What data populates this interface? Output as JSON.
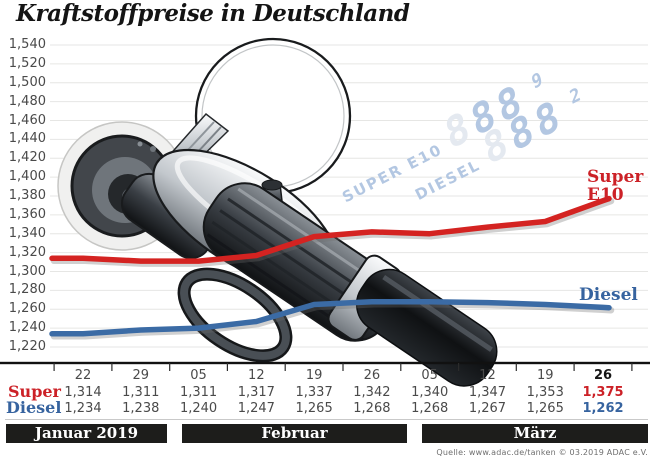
{
  "title": "Kraftstoffpreise in Deutschland",
  "source": "Quelle: www.adac.de/tanken   © 03.2019  ADAC e.V.",
  "legend": {
    "super_line1": "Super",
    "super_line2": "E10",
    "diesel": "Diesel"
  },
  "row_labels": {
    "super": "Super",
    "diesel": "Diesel"
  },
  "months": [
    "Januar 2019",
    "Februar",
    "März"
  ],
  "watermark": {
    "row1_label": "SUPER E10",
    "row1_digits": [
      "8",
      "8",
      "8"
    ],
    "row1_sup": "9",
    "row2_label": "DIESEL",
    "row2_digits": [
      "8",
      "8",
      "8"
    ],
    "row2_sup": "2"
  },
  "colors": {
    "super": "#cc2127",
    "diesel": "#36639f",
    "super_line": "#d42321",
    "diesel_line": "#3b6ba5",
    "month_bar": "#1d1d1b",
    "grid": "#e6e6e4",
    "axis_text": "#4a4a4a",
    "baseline": "#111111",
    "watermark_lit": "#b3c7e2",
    "watermark_dim": "#e4e9f0",
    "source_text": "#6f6f6f"
  },
  "chart_data": {
    "type": "line",
    "title": "Kraftstoffpreise in Deutschland",
    "x_tick_labels": [
      "22",
      "29",
      "05",
      "12",
      "19",
      "26",
      "05",
      "12",
      "19",
      "26"
    ],
    "month_groups": [
      {
        "label": "Januar 2019",
        "tick_indices": [
          0,
          1
        ]
      },
      {
        "label": "Februar",
        "tick_indices": [
          2,
          3,
          4,
          5
        ]
      },
      {
        "label": "März",
        "tick_indices": [
          6,
          7,
          8,
          9
        ]
      }
    ],
    "y_tick_labels": [
      "1,540",
      "1,520",
      "1,500",
      "1,480",
      "1,460",
      "1,440",
      "1,420",
      "1,400",
      "1,380",
      "1,360",
      "1,340",
      "1,320",
      "1,300",
      "1,280",
      "1,260",
      "1,240",
      "1,220"
    ],
    "ylim": [
      1.22,
      1.54
    ],
    "grid": true,
    "legend_position": "right-of-line-ends",
    "series": [
      {
        "name": "Super E10",
        "color_key": "super_line",
        "label_color_key": "super",
        "values": [
          1.314,
          1.311,
          1.311,
          1.317,
          1.337,
          1.342,
          1.34,
          1.347,
          1.353,
          1.375
        ]
      },
      {
        "name": "Diesel",
        "color_key": "diesel_line",
        "label_color_key": "diesel",
        "values": [
          1.234,
          1.238,
          1.24,
          1.247,
          1.265,
          1.268,
          1.268,
          1.267,
          1.265,
          1.262
        ]
      }
    ]
  }
}
